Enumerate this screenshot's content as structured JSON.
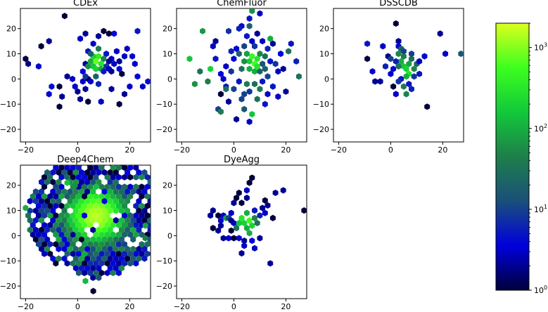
{
  "chart_data": {
    "type": "hexbin",
    "shared_axes": {
      "xlim": [
        -22,
        28
      ],
      "ylim": [
        -25,
        28
      ],
      "xticks": [
        -20,
        0,
        20
      ],
      "yticks": [
        -20,
        -10,
        0,
        10,
        20
      ]
    },
    "colorbar": {
      "scale": "log",
      "range": [
        1,
        2000
      ],
      "colormap": "gist_ncar-like (black-blue-green-yellow)",
      "stops": [
        "#00003a",
        "#0000dd",
        "#1a4f7a",
        "#1e7f4a",
        "#12c83a",
        "#3cff1e",
        "#dcff1e"
      ],
      "ticks": [
        {
          "value": 1,
          "base": "10",
          "exp": "0"
        },
        {
          "value": 10,
          "base": "10",
          "exp": "1"
        },
        {
          "value": 100,
          "base": "10",
          "exp": "2"
        },
        {
          "value": 1000,
          "base": "10",
          "exp": "3"
        }
      ]
    },
    "panels": [
      {
        "title": "CDEx",
        "hexes": [
          [
            -20,
            8,
            1
          ],
          [
            -19,
            6,
            2
          ],
          [
            -15,
            5,
            4
          ],
          [
            -14,
            13,
            1
          ],
          [
            -11,
            15,
            2
          ],
          [
            -5,
            25,
            1
          ],
          [
            -10,
            -3,
            4
          ],
          [
            -7,
            -3,
            1
          ],
          [
            -6,
            -7,
            2
          ],
          [
            -7,
            -11,
            1
          ],
          [
            -4,
            1,
            2
          ],
          [
            -2,
            0,
            3
          ],
          [
            -1,
            -3,
            3
          ],
          [
            0,
            -5,
            2
          ],
          [
            1,
            -8,
            2
          ],
          [
            2,
            -1,
            3
          ],
          [
            2,
            3,
            4
          ],
          [
            3,
            -4,
            2
          ],
          [
            4,
            0,
            1
          ],
          [
            3,
            6,
            2
          ],
          [
            4,
            11,
            5
          ],
          [
            1,
            16,
            3
          ],
          [
            3,
            18,
            2
          ],
          [
            6,
            14,
            3
          ],
          [
            4,
            5,
            60
          ],
          [
            5,
            7,
            100
          ],
          [
            6,
            5,
            150
          ],
          [
            7,
            7,
            800
          ],
          [
            8,
            9,
            400
          ],
          [
            7,
            4,
            200
          ],
          [
            9,
            6,
            300
          ],
          [
            9,
            4,
            100
          ],
          [
            6,
            9,
            200
          ],
          [
            5,
            10,
            20
          ],
          [
            8,
            12,
            40
          ],
          [
            10,
            8,
            50
          ],
          [
            11,
            5,
            8
          ],
          [
            10,
            3,
            5
          ],
          [
            12,
            4,
            3
          ],
          [
            11,
            10,
            5
          ],
          [
            13,
            8,
            3
          ],
          [
            12,
            7,
            2
          ],
          [
            14,
            6,
            3
          ],
          [
            13,
            3,
            2
          ],
          [
            16,
            4,
            4
          ],
          [
            17,
            2,
            1
          ],
          [
            8,
            17,
            2
          ],
          [
            10,
            19,
            1
          ],
          [
            12,
            18,
            1
          ],
          [
            14,
            18,
            4
          ],
          [
            15,
            11,
            3
          ],
          [
            16,
            7,
            2
          ],
          [
            18,
            9,
            3
          ],
          [
            19,
            12,
            3
          ],
          [
            21,
            9,
            4
          ],
          [
            22,
            6,
            3
          ],
          [
            23,
            1,
            4
          ],
          [
            20,
            -3,
            3
          ],
          [
            18,
            -6,
            2
          ],
          [
            16,
            -10,
            1
          ],
          [
            13,
            -4,
            2
          ],
          [
            9,
            -9,
            3
          ],
          [
            5,
            -1,
            3
          ],
          [
            4,
            -9,
            1
          ],
          [
            25,
            -3,
            3
          ],
          [
            27,
            -1,
            4
          ],
          [
            23,
            19,
            5
          ],
          [
            -11,
            -6,
            4
          ],
          [
            8,
            -2,
            6
          ],
          [
            7,
            1,
            20
          ],
          [
            3,
            1,
            8
          ]
        ]
      },
      {
        "title": "ChemFluor",
        "hexes": [
          [
            -17,
            8,
            150
          ],
          [
            -15,
            -2,
            60
          ],
          [
            -13,
            3,
            30
          ],
          [
            -10,
            -1,
            40
          ],
          [
            -12,
            19,
            70
          ],
          [
            -9,
            4,
            200
          ],
          [
            -8,
            13,
            3
          ],
          [
            -7,
            15,
            2
          ],
          [
            -6,
            -12,
            10
          ],
          [
            -5,
            -13,
            40
          ],
          [
            -5,
            -6,
            1
          ],
          [
            -4,
            0,
            3
          ],
          [
            -3,
            -3,
            5
          ],
          [
            -2,
            -9,
            2
          ],
          [
            0,
            -4,
            10
          ],
          [
            -1,
            3,
            8
          ],
          [
            0,
            8,
            4
          ],
          [
            -2,
            19,
            8
          ],
          [
            1,
            12,
            4
          ],
          [
            2,
            10,
            20
          ],
          [
            3,
            4,
            30
          ],
          [
            2,
            -1,
            5
          ],
          [
            3,
            -8,
            10
          ],
          [
            4,
            -12,
            15
          ],
          [
            1,
            -16,
            2
          ],
          [
            5,
            -2,
            40
          ],
          [
            6,
            7,
            200
          ],
          [
            7,
            9,
            500
          ],
          [
            8,
            6,
            600
          ],
          [
            9,
            8,
            300
          ],
          [
            6,
            4,
            100
          ],
          [
            8,
            3,
            100
          ],
          [
            10,
            10,
            50
          ],
          [
            9,
            5,
            300
          ],
          [
            5,
            10,
            80
          ],
          [
            4,
            7,
            60
          ],
          [
            10,
            3,
            20
          ],
          [
            11,
            6,
            15
          ],
          [
            12,
            9,
            30
          ],
          [
            12,
            4,
            20
          ],
          [
            13,
            1,
            10
          ],
          [
            11,
            -1,
            5
          ],
          [
            14,
            7,
            5
          ],
          [
            7,
            -14,
            150
          ],
          [
            9,
            -8,
            30
          ],
          [
            6,
            21,
            20
          ],
          [
            5,
            17,
            5
          ],
          [
            4,
            13,
            10
          ],
          [
            8,
            13,
            8
          ],
          [
            7,
            15,
            3
          ],
          [
            9,
            18,
            2
          ],
          [
            11,
            15,
            3
          ],
          [
            13,
            12,
            6
          ],
          [
            15,
            14,
            2
          ],
          [
            16,
            6,
            8
          ],
          [
            18,
            10,
            4
          ],
          [
            17,
            3,
            3
          ],
          [
            15,
            -3,
            5
          ],
          [
            17,
            -7,
            3
          ],
          [
            19,
            4,
            2
          ],
          [
            21,
            11,
            30
          ],
          [
            22,
            14,
            5
          ],
          [
            24,
            7,
            6
          ],
          [
            25,
            1,
            30
          ],
          [
            20,
            -5,
            2
          ],
          [
            13,
            -6,
            3
          ],
          [
            12,
            -10,
            5
          ],
          [
            10,
            -4,
            40
          ],
          [
            8,
            -2,
            30
          ],
          [
            6,
            -5,
            8
          ],
          [
            4,
            -6,
            10
          ],
          [
            3,
            21,
            4
          ],
          [
            6,
            24,
            5
          ],
          [
            7,
            27,
            60
          ],
          [
            10,
            26,
            3
          ],
          [
            2,
            20,
            6
          ],
          [
            -3,
            5,
            3
          ],
          [
            -7,
            8,
            5
          ],
          [
            -1,
            11,
            6
          ],
          [
            14,
            16,
            100
          ],
          [
            6,
            -17,
            3
          ],
          [
            -3,
            -4,
            30
          ],
          [
            -5,
            2,
            4
          ]
        ]
      },
      {
        "title": "DSSCDB",
        "hexes": [
          [
            -9,
            14,
            5
          ],
          [
            -9,
            8,
            1
          ],
          [
            -7,
            3,
            3
          ],
          [
            -3,
            13,
            3
          ],
          [
            -2,
            5,
            6
          ],
          [
            -1,
            9,
            2
          ],
          [
            0,
            8,
            10
          ],
          [
            1,
            4,
            4
          ],
          [
            0,
            2,
            3
          ],
          [
            1,
            -3,
            1
          ],
          [
            -4,
            -1,
            2
          ],
          [
            -6,
            -1,
            2
          ],
          [
            2,
            22,
            1
          ],
          [
            3,
            15,
            2
          ],
          [
            3,
            10,
            50
          ],
          [
            4,
            7,
            100
          ],
          [
            5,
            5,
            150
          ],
          [
            6,
            4,
            200
          ],
          [
            7,
            2,
            300
          ],
          [
            6,
            1,
            100
          ],
          [
            7,
            6,
            80
          ],
          [
            5,
            9,
            40
          ],
          [
            8,
            8,
            30
          ],
          [
            9,
            4,
            50
          ],
          [
            10,
            6,
            20
          ],
          [
            9,
            1,
            8
          ],
          [
            8,
            10,
            10
          ],
          [
            4,
            0,
            5
          ],
          [
            5,
            -3,
            40
          ],
          [
            3,
            -1,
            8
          ],
          [
            2,
            -6,
            3
          ],
          [
            7,
            -2,
            5
          ],
          [
            8,
            -4,
            6
          ],
          [
            11,
            2,
            5
          ],
          [
            11,
            7,
            3
          ],
          [
            13,
            9,
            4
          ],
          [
            14,
            -11,
            1
          ],
          [
            19,
            18,
            2
          ],
          [
            21,
            10,
            3
          ],
          [
            27,
            10,
            15
          ],
          [
            3,
            13,
            4
          ],
          [
            4,
            12,
            20
          ],
          [
            5,
            11,
            10
          ],
          [
            3,
            5,
            30
          ],
          [
            2,
            7,
            6
          ],
          [
            6,
            -6,
            50
          ]
        ]
      },
      {
        "title": "Deep4Chem",
        "hexes": [],
        "procedural": {
          "center": [
            7,
            8
          ],
          "radius": 26,
          "peak": 1500,
          "fill": "dense"
        }
      },
      {
        "title": "DyeAgg",
        "hexes": [
          [
            -9,
            8,
            2
          ],
          [
            -8,
            10,
            2
          ],
          [
            -6,
            8,
            1
          ],
          [
            -4,
            8,
            3
          ],
          [
            -5,
            6,
            4
          ],
          [
            -3,
            7,
            80
          ],
          [
            -2,
            7,
            10
          ],
          [
            -1,
            9,
            3
          ],
          [
            0,
            13,
            2
          ],
          [
            1,
            15,
            1
          ],
          [
            2,
            17,
            1
          ],
          [
            0,
            5,
            3
          ],
          [
            1,
            3,
            30
          ],
          [
            2,
            5,
            150
          ],
          [
            3,
            7,
            300
          ],
          [
            4,
            5,
            200
          ],
          [
            5,
            3,
            100
          ],
          [
            6,
            6,
            500
          ],
          [
            5,
            9,
            100
          ],
          [
            7,
            4,
            200
          ],
          [
            6,
            1,
            100
          ],
          [
            8,
            7,
            50
          ],
          [
            8,
            10,
            5
          ],
          [
            9,
            5,
            30
          ],
          [
            10,
            8,
            6
          ],
          [
            11,
            11,
            2
          ],
          [
            12,
            9,
            3
          ],
          [
            12,
            14,
            1
          ],
          [
            10,
            -1,
            2
          ],
          [
            7,
            -2,
            4
          ],
          [
            8,
            -5,
            3
          ],
          [
            4,
            -2,
            2
          ],
          [
            4,
            -4,
            3
          ],
          [
            2,
            -1,
            4
          ],
          [
            0,
            -1,
            1
          ],
          [
            -2,
            -1,
            3
          ],
          [
            -4,
            -1,
            2
          ],
          [
            -1,
            2,
            1
          ],
          [
            -6,
            2,
            2
          ],
          [
            -5,
            4,
            2
          ],
          [
            -8,
            3,
            1
          ],
          [
            3,
            13,
            1
          ],
          [
            5,
            15,
            2
          ],
          [
            5,
            18,
            3
          ],
          [
            6,
            21,
            1
          ],
          [
            7,
            23,
            1
          ],
          [
            14,
            -11,
            2
          ],
          [
            19,
            18,
            2
          ],
          [
            16,
            17,
            2
          ],
          [
            27,
            10,
            1
          ],
          [
            13,
            12,
            2
          ],
          [
            15,
            7,
            1
          ],
          [
            -1,
            6,
            2
          ],
          [
            3,
            -7,
            2
          ]
        ]
      }
    ]
  }
}
